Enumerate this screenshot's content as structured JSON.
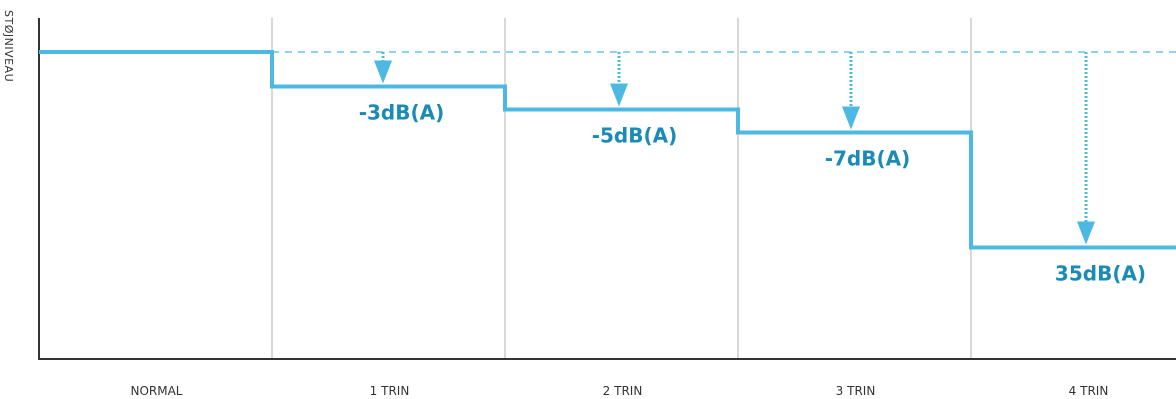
{
  "chart_data": {
    "type": "line",
    "ylabel": "STØJNIVEAU",
    "xlabel": "",
    "title": "",
    "categories": [
      "NORMAL",
      "1 TRIN",
      "2 TRIN",
      "3 TRIN",
      "4 TRIN"
    ],
    "reductions_db": [
      0,
      -3,
      -5,
      -7,
      -17
    ],
    "data_labels": [
      "",
      "-3dB(A)",
      "-5dB(A)",
      "-7dB(A)",
      "35dB(A)"
    ],
    "grid": true,
    "colors": {
      "line": "#4DB8E1",
      "label": "#1A8BB5",
      "grid": "#B0B0B0",
      "axis": "#333333"
    }
  }
}
